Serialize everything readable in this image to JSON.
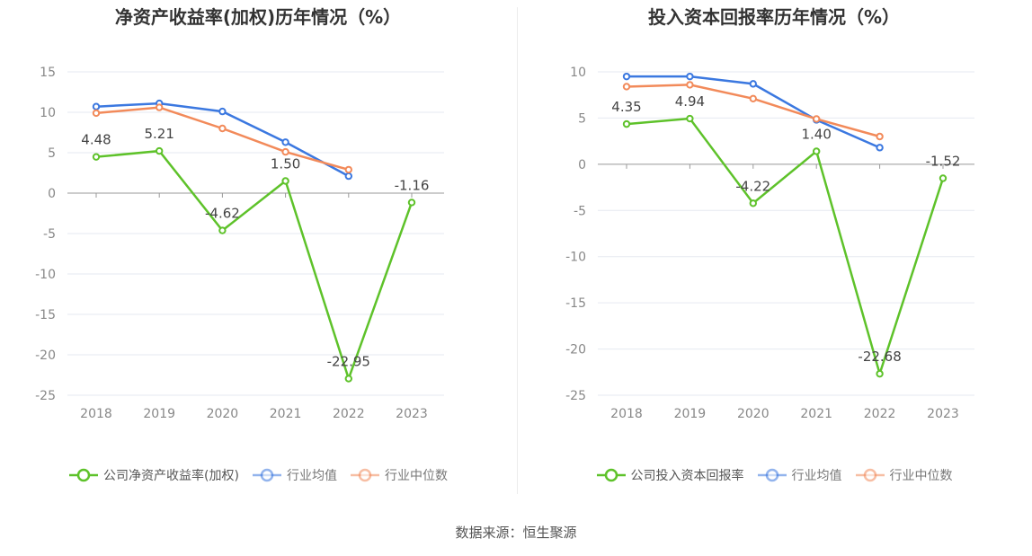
{
  "colors": {
    "company": "#5ec22a",
    "avg": "#3b78e0",
    "median": "#f28a5a",
    "grid": "#e6e9f0",
    "axis": "#999999",
    "text": "#888888",
    "label": "#444444"
  },
  "source_text": "数据来源：恒生聚源",
  "chart_data": [
    {
      "type": "line",
      "title": "净资产收益率(加权)历年情况（%）",
      "categories": [
        "2018",
        "2019",
        "2020",
        "2021",
        "2022",
        "2023"
      ],
      "ylim": [
        -25,
        15
      ],
      "yticks": [
        15,
        10,
        5,
        0,
        -5,
        -10,
        -15,
        -20,
        -25
      ],
      "grid": true,
      "legend_position": "bottom",
      "series": [
        {
          "name": "公司净资产收益率(加权)",
          "key": "company",
          "values": [
            4.48,
            5.21,
            -4.62,
            1.5,
            -22.95,
            -1.16
          ],
          "labels": [
            "4.48",
            "5.21",
            "-4.62",
            "1.50",
            "-22.95",
            "-1.16"
          ]
        },
        {
          "name": "行业均值",
          "key": "avg",
          "values": [
            10.7,
            11.1,
            10.1,
            6.3,
            2.1,
            null
          ]
        },
        {
          "name": "行业中位数",
          "key": "median",
          "values": [
            9.9,
            10.6,
            8.0,
            5.1,
            2.9,
            null
          ]
        }
      ]
    },
    {
      "type": "line",
      "title": "投入资本回报率历年情况（%）",
      "categories": [
        "2018",
        "2019",
        "2020",
        "2021",
        "2022",
        "2023"
      ],
      "ylim": [
        -25,
        10
      ],
      "yticks": [
        10,
        5,
        0,
        -5,
        -10,
        -15,
        -20,
        -25
      ],
      "grid": true,
      "legend_position": "bottom",
      "series": [
        {
          "name": "公司投入资本回报率",
          "key": "company",
          "values": [
            4.35,
            4.94,
            -4.22,
            1.4,
            -22.68,
            -1.52
          ],
          "labels": [
            "4.35",
            "4.94",
            "-4.22",
            "1.40",
            "-22.68",
            "-1.52"
          ]
        },
        {
          "name": "行业均值",
          "key": "avg",
          "values": [
            9.5,
            9.5,
            8.7,
            4.8,
            1.8,
            null
          ]
        },
        {
          "name": "行业中位数",
          "key": "median",
          "values": [
            8.4,
            8.6,
            7.1,
            4.9,
            3.0,
            null
          ]
        }
      ]
    }
  ]
}
